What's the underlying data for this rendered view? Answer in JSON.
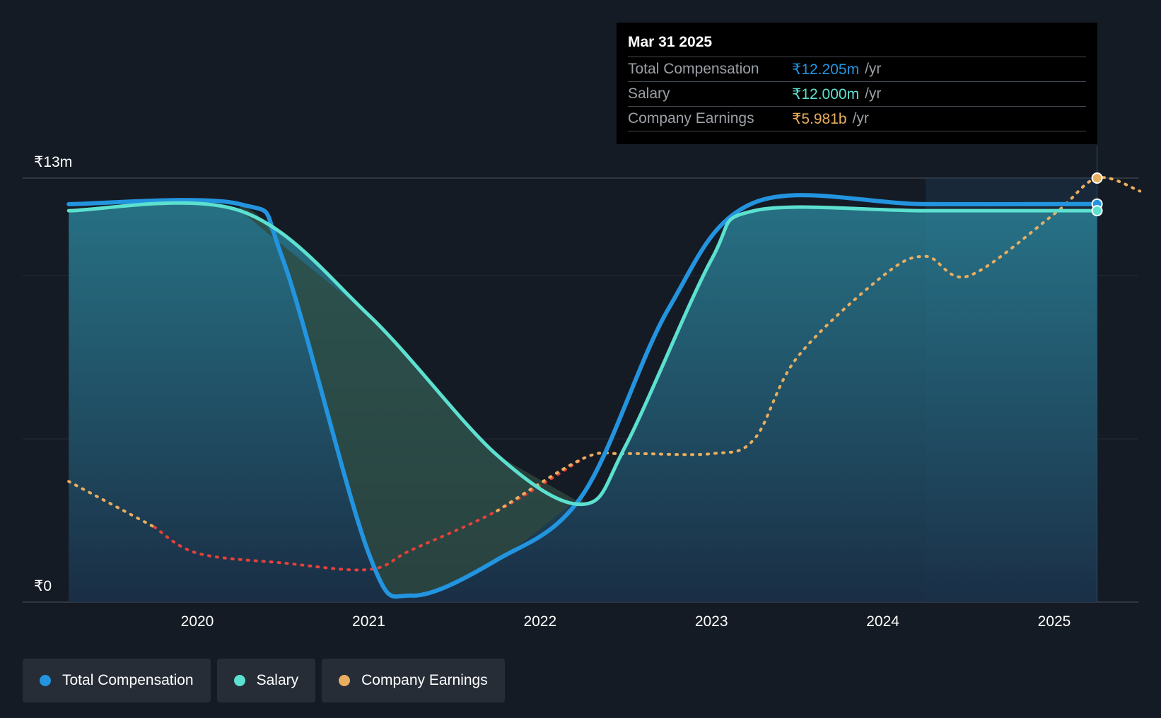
{
  "chart_data": {
    "type": "line",
    "y_axis": {
      "top_label": "₹13m",
      "bottom_label": "₹0",
      "ylim": [
        0,
        13
      ]
    },
    "x_ticks": [
      "2020",
      "2021",
      "2022",
      "2023",
      "2024",
      "2025"
    ],
    "x_range": [
      2019.25,
      2025.5
    ],
    "series": [
      {
        "name": "Total Compensation",
        "color": "#2394df",
        "unit": "₹m",
        "points": [
          [
            2019.25,
            12.2
          ],
          [
            2020.25,
            12.2
          ],
          [
            2020.5,
            10.5
          ],
          [
            2021.0,
            1.5
          ],
          [
            2021.25,
            0.2
          ],
          [
            2021.75,
            1.3
          ],
          [
            2022.25,
            3.3
          ],
          [
            2022.75,
            9.0
          ],
          [
            2023.25,
            12.25
          ],
          [
            2024.25,
            12.2
          ],
          [
            2025.25,
            12.205
          ]
        ]
      },
      {
        "name": "Salary",
        "color": "#5ce0cf",
        "unit": "₹m",
        "points": [
          [
            2019.25,
            12.0
          ],
          [
            2020.25,
            12.0
          ],
          [
            2021.0,
            8.8
          ],
          [
            2021.75,
            4.5
          ],
          [
            2022.25,
            3.0
          ],
          [
            2022.5,
            4.8
          ],
          [
            2023.0,
            10.5
          ],
          [
            2023.25,
            12.0
          ],
          [
            2024.25,
            12.0
          ],
          [
            2025.25,
            12.0
          ]
        ]
      },
      {
        "name": "Company Earnings",
        "color": "#e9ae5f",
        "negative_color": "#e5413b",
        "unit": "₹b",
        "scaled_to_chart": [
          [
            2019.25,
            3.7
          ],
          [
            2019.75,
            2.3
          ],
          [
            2020.0,
            1.5
          ],
          [
            2020.5,
            1.2
          ],
          [
            2021.0,
            1.0
          ],
          [
            2021.25,
            1.6
          ],
          [
            2021.75,
            2.8
          ],
          [
            2022.25,
            4.4
          ],
          [
            2022.5,
            4.55
          ],
          [
            2023.0,
            4.55
          ],
          [
            2023.25,
            5.0
          ],
          [
            2023.5,
            7.5
          ],
          [
            2024.0,
            10.0
          ],
          [
            2024.25,
            10.6
          ],
          [
            2024.5,
            10.0
          ],
          [
            2025.0,
            11.9
          ],
          [
            2025.25,
            13.0
          ],
          [
            2025.5,
            12.6
          ]
        ]
      }
    ],
    "forecast_shading_from": 2024.25
  },
  "tooltip": {
    "date": "Mar 31 2025",
    "rows": [
      {
        "label": "Total Compensation",
        "value": "₹12.205m",
        "unit": "/yr",
        "color": "#2394df"
      },
      {
        "label": "Salary",
        "value": "₹12.000m",
        "unit": "/yr",
        "color": "#5ce0cf"
      },
      {
        "label": "Company Earnings",
        "value": "₹5.981b",
        "unit": "/yr",
        "color": "#e9ae5f"
      }
    ]
  },
  "legend": [
    {
      "label": "Total Compensation",
      "color": "#2394df"
    },
    {
      "label": "Salary",
      "color": "#5ce0cf"
    },
    {
      "label": "Company Earnings",
      "color": "#e9ae5f"
    }
  ]
}
